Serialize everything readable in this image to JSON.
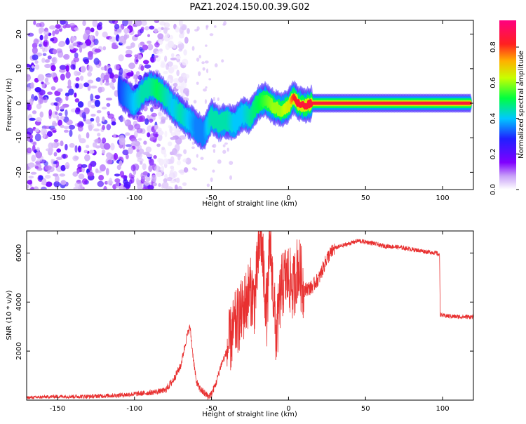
{
  "title": "PAZ1.2024.150.00.39.G02",
  "chart_data": [
    {
      "type": "heatmap",
      "title": "PAZ1.2024.150.00.39.G02",
      "xlabel": "Height of straight line (km)",
      "ylabel": "Frequency (Hz)",
      "xlim": [
        -170,
        120
      ],
      "ylim": [
        -25,
        24
      ],
      "x_ticks": [
        -150,
        -100,
        -50,
        0,
        50,
        100
      ],
      "x_tick_labels": [
        "-150",
        "-100",
        "-50",
        "0",
        "50",
        "100"
      ],
      "y_ticks": [
        -20,
        -10,
        0,
        10,
        20
      ],
      "y_tick_labels": [
        "-20",
        "-10",
        "0",
        "10",
        "20"
      ],
      "colormap": "rainbow (white → purple → blue → cyan → green → yellow → red → magenta)",
      "colorbar": {
        "label": "Normalized spectral amplitude",
        "range": [
          0,
          0.95
        ],
        "ticks": [
          0.0,
          0.2,
          0.4,
          0.6,
          0.8
        ],
        "tick_labels": [
          "0.0",
          "0.2",
          "0.4",
          "0.6",
          "0.8"
        ]
      },
      "ridge": {
        "x": [
          -110,
          -100,
          -95,
          -90,
          -85,
          -80,
          -75,
          -70,
          -65,
          -60,
          -55,
          -50,
          -45,
          -40,
          -35,
          -30,
          -25,
          -20,
          -15,
          -10,
          -5,
          0,
          3,
          6,
          10,
          15,
          20,
          30,
          50,
          70,
          90,
          110,
          118
        ],
        "y": [
          4,
          0,
          3,
          5,
          4,
          2,
          -1,
          -3,
          -5,
          -7,
          -9,
          -4,
          -6,
          -5,
          -6,
          -3,
          -4,
          0,
          1,
          -1,
          -2,
          -1,
          2,
          0,
          -1,
          0,
          0,
          0,
          0,
          0,
          0,
          0,
          0
        ],
        "amplitude": [
          0.3,
          0.4,
          0.45,
          0.45,
          0.5,
          0.45,
          0.4,
          0.45,
          0.4,
          0.35,
          0.35,
          0.45,
          0.45,
          0.45,
          0.4,
          0.4,
          0.45,
          0.5,
          0.55,
          0.6,
          0.6,
          0.65,
          0.8,
          0.85,
          0.85,
          0.85,
          0.9,
          0.9,
          0.92,
          0.9,
          0.92,
          0.95,
          0.9
        ]
      },
      "noise_region": [
        -170,
        -85
      ]
    },
    {
      "type": "line",
      "xlabel": "Height of straight line (km)",
      "ylabel": "SNR (10 * v/v)",
      "xlim": [
        -170,
        120
      ],
      "ylim": [
        0,
        6900
      ],
      "x_ticks": [
        -150,
        -100,
        -50,
        0,
        50,
        100
      ],
      "x_tick_labels": [
        "-150",
        "-100",
        "-50",
        "0",
        "50",
        "100"
      ],
      "y_ticks": [
        2000,
        4000,
        6000
      ],
      "y_tick_labels": [
        "2000",
        "4000",
        "6000"
      ],
      "color": "#e83030",
      "series": [
        {
          "x": [
            -170,
            -150,
            -130,
            -110,
            -100,
            -90,
            -80,
            -75,
            -70,
            -66,
            -64,
            -62,
            -60,
            -58,
            -55,
            -52,
            -50,
            -47,
            -44,
            -40,
            -35,
            -30,
            -25,
            -22,
            -20,
            -18,
            -16,
            -14,
            -12,
            -10,
            -8,
            -5,
            -2,
            0,
            3,
            6,
            10,
            15,
            20,
            25,
            30,
            35,
            40,
            45,
            50,
            55,
            60,
            70,
            80,
            90,
            96,
            98,
            98.5,
            100,
            110,
            120
          ],
          "y": [
            100,
            150,
            150,
            200,
            250,
            300,
            400,
            800,
            1400,
            2600,
            3000,
            1800,
            800,
            500,
            300,
            150,
            250,
            700,
            1400,
            2000,
            3000,
            3600,
            4500,
            4000,
            5600,
            6800,
            5000,
            3500,
            6500,
            4500,
            2500,
            4500,
            5000,
            5000,
            4500,
            5500,
            4500,
            4600,
            5000,
            5800,
            6200,
            6300,
            6400,
            6500,
            6450,
            6400,
            6300,
            6250,
            6150,
            6050,
            6000,
            5900,
            3500,
            3450,
            3400,
            3400
          ]
        }
      ]
    }
  ]
}
